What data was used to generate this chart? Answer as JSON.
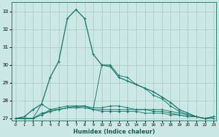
{
  "xlabel": "Humidex (Indice chaleur)",
  "background_color": "#cce8e4",
  "grid_color": "#aaccca",
  "line_color": "#1a7a6e",
  "xlim": [
    -0.5,
    23.3
  ],
  "ylim": [
    26.9,
    33.5
  ],
  "yticks": [
    27,
    28,
    29,
    30,
    31,
    32,
    33
  ],
  "xticks": [
    0,
    1,
    2,
    3,
    4,
    5,
    6,
    7,
    8,
    9,
    10,
    11,
    12,
    13,
    14,
    15,
    16,
    17,
    18,
    19,
    20,
    21,
    22,
    23
  ],
  "lines": [
    {
      "y": [
        27.0,
        27.1,
        27.5,
        27.8,
        29.3,
        30.2,
        32.6,
        33.1,
        32.6,
        30.6,
        30.0,
        29.9,
        29.3,
        29.1,
        28.9,
        28.7,
        28.5,
        28.2,
        27.9,
        27.5,
        27.3,
        27.1,
        27.0,
        27.1
      ]
    },
    {
      "y": [
        27.0,
        27.0,
        27.0,
        27.8,
        27.5,
        27.5,
        27.6,
        27.6,
        27.7,
        27.5,
        30.0,
        30.0,
        29.4,
        29.3,
        28.9,
        28.7,
        28.3,
        28.1,
        27.7,
        27.4,
        27.2,
        27.1,
        27.0,
        27.1
      ]
    },
    {
      "y": [
        27.0,
        27.0,
        27.0,
        27.3,
        27.4,
        27.5,
        27.6,
        27.7,
        27.7,
        27.6,
        27.6,
        27.7,
        27.7,
        27.6,
        27.5,
        27.5,
        27.5,
        27.5,
        27.4,
        27.3,
        27.2,
        27.1,
        27.0,
        27.0
      ]
    },
    {
      "y": [
        27.0,
        27.0,
        27.0,
        27.2,
        27.5,
        27.6,
        27.7,
        27.7,
        27.7,
        27.5,
        27.5,
        27.5,
        27.5,
        27.5,
        27.5,
        27.5,
        27.4,
        27.4,
        27.3,
        27.2,
        27.1,
        27.1,
        27.0,
        27.1
      ]
    },
    {
      "y": [
        27.0,
        27.0,
        27.0,
        27.2,
        27.4,
        27.5,
        27.6,
        27.6,
        27.6,
        27.5,
        27.4,
        27.4,
        27.4,
        27.4,
        27.4,
        27.3,
        27.3,
        27.3,
        27.2,
        27.2,
        27.1,
        27.1,
        27.0,
        27.1
      ]
    }
  ]
}
